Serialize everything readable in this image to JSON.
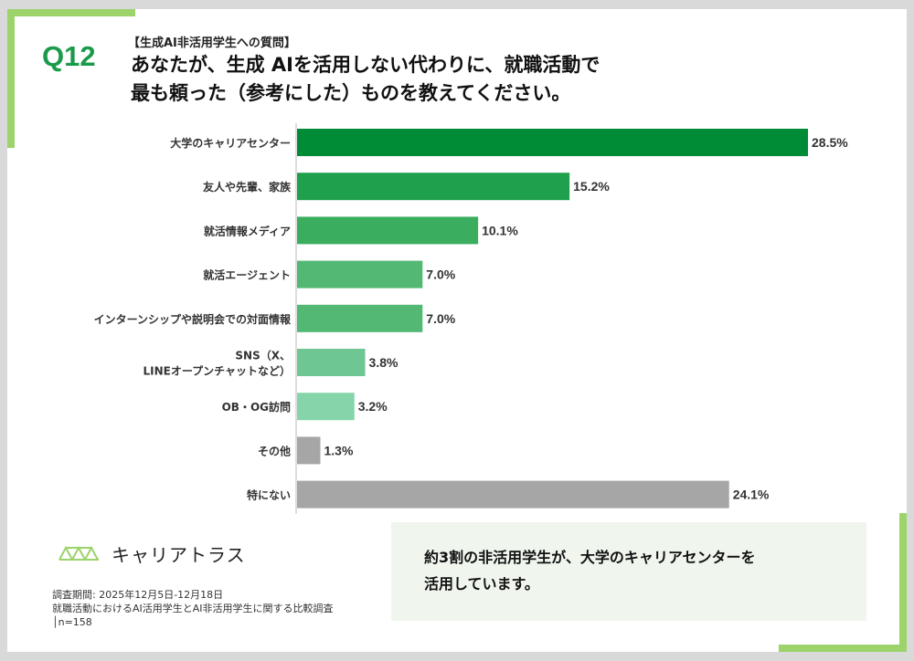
{
  "header": {
    "qnum": "Q12",
    "subtitle": "【生成AI非活用学生への質問】",
    "title_line1": "あなたが、生成 AIを活用しない代わりに、就職活動で",
    "title_line2": "最も頼った（参考にした）ものを教えてください。"
  },
  "chart_data": {
    "type": "bar",
    "orientation": "horizontal",
    "categories": [
      [
        "大学のキャリアセンター"
      ],
      [
        "友人や先輩、家族"
      ],
      [
        "就活情報メディア"
      ],
      [
        "就活エージェント"
      ],
      [
        "インターンシップや説明会での対面情報"
      ],
      [
        "SNS（X、",
        "LINEオープンチャットなど）"
      ],
      [
        "OB・OG訪問"
      ],
      [
        "その他"
      ],
      [
        "特にない"
      ]
    ],
    "values": [
      28.5,
      15.2,
      10.1,
      7.0,
      7.0,
      3.8,
      3.2,
      1.3,
      24.1
    ],
    "value_labels": [
      "28.5%",
      "15.2%",
      "10.1%",
      "7.0%",
      "7.0%",
      "3.8%",
      "3.2%",
      "1.3%",
      "24.1%"
    ],
    "colors": [
      "#008c36",
      "#1fa04c",
      "#3aae5e",
      "#52b873",
      "#52b873",
      "#6ec792",
      "#86d5aa",
      "#a6a6a6",
      "#a6a6a6"
    ],
    "xlim": [
      0,
      28.5
    ],
    "grid": false,
    "legend": "none"
  },
  "brand": {
    "name": "キャリアトラス",
    "color": "#9cd36b"
  },
  "notes": {
    "period": "調査期間: 2025年12月5日-12月18日",
    "survey": "就職活動におけるAI活用学生とAI非活用学生に関する比較調査",
    "sample": "│n=158"
  },
  "summary": {
    "line1": "約3割の非活用学生が、大学のキャリアセンターを",
    "line2": "活用しています。"
  }
}
